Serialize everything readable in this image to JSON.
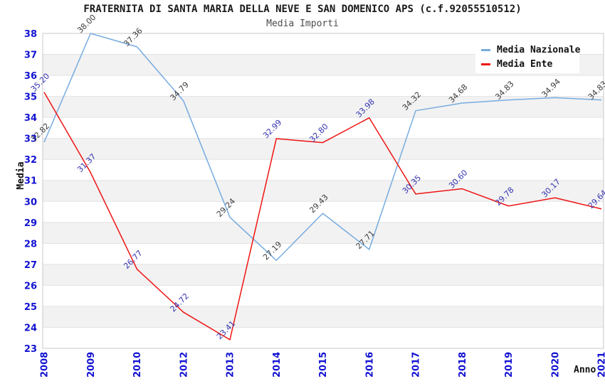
{
  "title": "FRATERNITA DI SANTA MARIA DELLA NEVE E SAN DOMENICO APS (c.f.92055510512)",
  "subtitle": "Media Importi",
  "colors": {
    "nazionale_line": "#76ace0",
    "ente_line": "#ee1414",
    "tick_label": "#1212d2",
    "nazionale_value_label": "#3c3c3c",
    "ente_value_label": "#3434b0",
    "grid_line": "#e3e3e3",
    "band_fill": "#f2f2f2",
    "plot_border": "#c9c9c9",
    "axis_title": "#111111"
  },
  "legend": {
    "position": "top-right",
    "items": [
      {
        "label": "Media Nazionale",
        "key": "nazionale"
      },
      {
        "label": "Media Ente",
        "key": "ente"
      }
    ]
  },
  "chart_data": {
    "type": "line",
    "title": "FRATERNITA DI SANTA MARIA DELLA NEVE E SAN DOMENICO APS (c.f.92055510512)",
    "subtitle": "Media Importi",
    "xlabel": "Anno",
    "ylabel": "Media",
    "ylim": [
      23,
      38
    ],
    "ytick_step": 1,
    "grid": true,
    "legend_position": "top-right",
    "categories": [
      "2008",
      "2009",
      "2010",
      "2012",
      "2013",
      "2014",
      "2015",
      "2016",
      "2017",
      "2018",
      "2019",
      "2020",
      "2021"
    ],
    "series": [
      {
        "name": "Media Nazionale",
        "key": "nazionale",
        "color": "#76ace0",
        "label_color": "#3c3c3c",
        "values": [
          32.82,
          38.0,
          37.36,
          34.79,
          29.24,
          27.19,
          29.43,
          27.71,
          34.32,
          34.68,
          34.83,
          34.94,
          34.83
        ]
      },
      {
        "name": "Media Ente",
        "key": "ente",
        "color": "#ee1414",
        "label_color": "#3434b0",
        "values": [
          35.2,
          31.37,
          26.77,
          24.72,
          23.41,
          32.99,
          32.8,
          33.98,
          30.35,
          30.6,
          29.78,
          30.17,
          29.64
        ]
      }
    ]
  }
}
